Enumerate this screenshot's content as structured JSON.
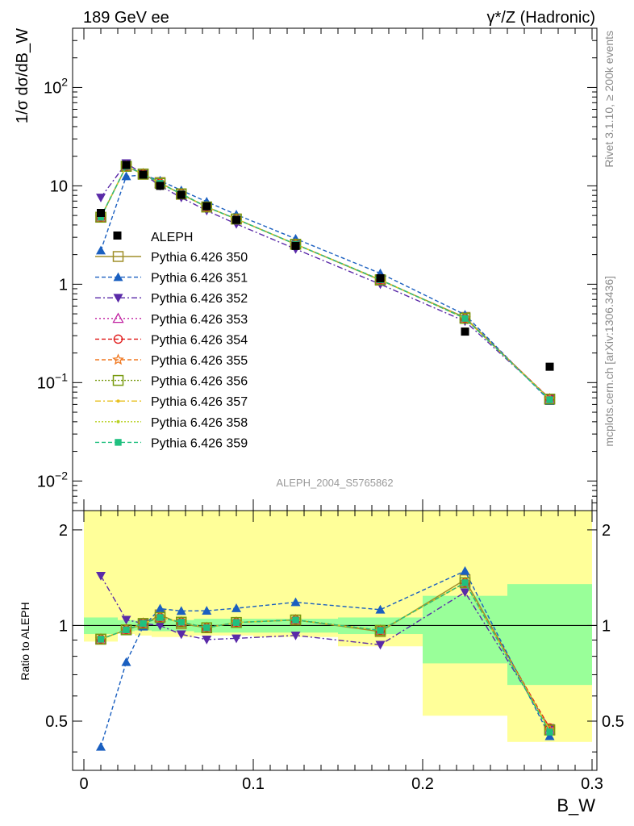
{
  "header": {
    "left": "189 GeV ee",
    "right": "γ*/Z (Hadronic)"
  },
  "side_text": {
    "top": "Rivet 3.1.10, ≥ 200k events",
    "bottom": "mcplots.cern.ch [arXiv:1306.3436]"
  },
  "watermark": "ALEPH_2004_S5765862",
  "chart_data": {
    "type": "line",
    "ylabel": "1/σ  dσ/dB_W",
    "xlabel": "B_W",
    "ratio_ylabel": "Ratio to ALEPH",
    "xlim": [
      0,
      0.3
    ],
    "ylim": [
      0.005,
      400
    ],
    "ylog": true,
    "ratio_ylim": [
      0.35,
      2.3
    ],
    "ratio_ylog": true,
    "x_ticks": [
      "0",
      "0.1",
      "0.2",
      "0.3"
    ],
    "y_ticks": [
      "10^-2",
      "10^-1",
      "1",
      "10",
      "10^2"
    ],
    "ratio_ticks": [
      "0.5",
      "1",
      "2"
    ],
    "legend_position": "middle-left",
    "x": [
      0.01,
      0.025,
      0.035,
      0.045,
      0.0575,
      0.0725,
      0.09,
      0.125,
      0.175,
      0.225,
      0.275
    ],
    "x_edges": [
      0,
      0.02,
      0.03,
      0.04,
      0.05,
      0.065,
      0.08,
      0.1,
      0.15,
      0.2,
      0.25,
      0.3
    ],
    "data": {
      "name": "ALEPH",
      "values": [
        5.3,
        16.3,
        13.0,
        10.0,
        8.1,
        6.2,
        4.5,
        2.45,
        1.15,
        0.33,
        0.145
      ],
      "stat_band": [
        0.06,
        0.04,
        0.035,
        0.04,
        0.04,
        0.05,
        0.05,
        0.05,
        0.06,
        0.24,
        0.35
      ],
      "total_band": [
        0.11,
        0.06,
        0.07,
        0.08,
        0.08,
        0.07,
        0.07,
        0.08,
        0.14,
        0.48,
        0.57
      ]
    },
    "series": [
      {
        "name": "Pythia 6.426 350",
        "color": "#a08f2a",
        "marker": "square-open",
        "dash": "solid",
        "values": [
          4.8,
          15.8,
          13.1,
          10.8,
          8.2,
          6.1,
          4.6,
          2.55,
          1.1,
          0.46,
          0.068
        ]
      },
      {
        "name": "Pythia 6.426 351",
        "color": "#1a5fc0",
        "marker": "triangle-up",
        "dash": "5,3",
        "values": [
          2.2,
          12.5,
          12.9,
          11.3,
          9.0,
          6.9,
          5.1,
          2.9,
          1.29,
          0.49,
          0.065
        ]
      },
      {
        "name": "Pythia 6.426 352",
        "color": "#5a2aa8",
        "marker": "triangle-down",
        "dash": "7,3,2,3",
        "values": [
          7.6,
          17.0,
          13.2,
          10.0,
          7.6,
          5.6,
          4.1,
          2.28,
          1.0,
          0.42,
          0.069
        ]
      },
      {
        "name": "Pythia 6.426 353",
        "color": "#c020a0",
        "marker": "triangle-open",
        "dash": "2,3",
        "values": [
          4.8,
          15.8,
          13.2,
          10.6,
          8.3,
          6.1,
          4.6,
          2.55,
          1.11,
          0.45,
          0.068
        ]
      },
      {
        "name": "Pythia 6.426 354",
        "color": "#e01818",
        "marker": "circle-open",
        "dash": "5,3",
        "values": [
          4.8,
          15.8,
          13.2,
          10.6,
          8.3,
          6.1,
          4.6,
          2.55,
          1.11,
          0.45,
          0.069
        ]
      },
      {
        "name": "Pythia 6.426 355",
        "color": "#f07820",
        "marker": "star-open",
        "dash": "5,3",
        "values": [
          4.8,
          15.8,
          13.2,
          10.6,
          8.3,
          6.1,
          4.6,
          2.55,
          1.11,
          0.45,
          0.068
        ]
      },
      {
        "name": "Pythia 6.426 356",
        "color": "#789a10",
        "marker": "square-open",
        "dash": "2,2",
        "values": [
          4.8,
          15.8,
          13.2,
          10.6,
          8.3,
          6.1,
          4.6,
          2.55,
          1.11,
          0.45,
          0.068
        ]
      },
      {
        "name": "Pythia 6.426 357",
        "color": "#e8c020",
        "marker": "dot",
        "dash": "7,3,2,3",
        "values": [
          4.8,
          15.8,
          13.2,
          10.6,
          8.3,
          6.1,
          4.6,
          2.55,
          1.11,
          0.45,
          0.068
        ]
      },
      {
        "name": "Pythia 6.426 358",
        "color": "#b8d020",
        "marker": "dot",
        "dash": "2,2",
        "values": [
          4.8,
          15.8,
          13.2,
          10.6,
          8.3,
          6.1,
          4.6,
          2.55,
          1.11,
          0.45,
          0.068
        ]
      },
      {
        "name": "Pythia 6.426 359",
        "color": "#20c080",
        "marker": "square-filled",
        "dash": "5,3",
        "values": [
          4.8,
          15.8,
          13.2,
          10.6,
          8.3,
          6.1,
          4.6,
          2.55,
          1.11,
          0.45,
          0.067
        ]
      }
    ]
  }
}
